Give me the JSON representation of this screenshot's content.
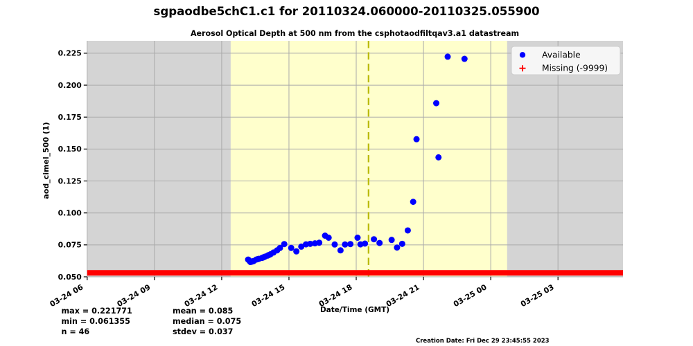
{
  "title": "sgpaodbe5chC1.c1 for 20110324.060000-20110325.055900",
  "subtitle": "Aerosol Optical Depth at 500 nm from the csphotaodfiltqav3.a1 datastream",
  "chart_data": {
    "type": "scatter",
    "title": "Aerosol Optical Depth at 500 nm from the csphotaodfiltqav3.a1 datastream",
    "xlabel": "Date/Time (GMT)",
    "ylabel": "aod_cimel_500 (1)",
    "x_start": "2011-03-24 06:00 GMT",
    "xlim_hours": [
      0,
      23.9
    ],
    "ylim": [
      0.05,
      0.2347
    ],
    "grid": true,
    "legend_position": "upper right",
    "x_ticks": [
      {
        "hour": 0,
        "label": "03-24 06"
      },
      {
        "hour": 3,
        "label": "03-24 09"
      },
      {
        "hour": 6,
        "label": "03-24 12"
      },
      {
        "hour": 9,
        "label": "03-24 15"
      },
      {
        "hour": 12,
        "label": "03-24 18"
      },
      {
        "hour": 15,
        "label": "03-24 21"
      },
      {
        "hour": 18,
        "label": "03-25 00"
      },
      {
        "hour": 21,
        "label": "03-25 03"
      }
    ],
    "y_ticks": [
      0.05,
      0.075,
      0.1,
      0.125,
      0.15,
      0.175,
      0.2,
      0.225
    ],
    "background_bands": {
      "night_color": "#d4d4d4",
      "day_color": "#ffffcc",
      "daylight_hours": [
        6.4,
        18.73
      ]
    },
    "solar_noon_hour": 12.55,
    "solar_noon_color": "#b9b900",
    "series": [
      {
        "name": "Available",
        "color": "#0000ff",
        "marker": "circle",
        "points_hours_value": [
          [
            7.18,
            0.0635
          ],
          [
            7.23,
            0.0627
          ],
          [
            7.28,
            0.0616
          ],
          [
            7.35,
            0.0619
          ],
          [
            7.42,
            0.0623
          ],
          [
            7.54,
            0.0635
          ],
          [
            7.6,
            0.0638
          ],
          [
            7.66,
            0.0641
          ],
          [
            7.8,
            0.0648
          ],
          [
            7.86,
            0.0652
          ],
          [
            7.92,
            0.0657
          ],
          [
            8.05,
            0.0666
          ],
          [
            8.11,
            0.0671
          ],
          [
            8.18,
            0.0677
          ],
          [
            8.31,
            0.069
          ],
          [
            8.47,
            0.0707
          ],
          [
            8.6,
            0.0726
          ],
          [
            8.79,
            0.0756
          ],
          [
            9.1,
            0.0726
          ],
          [
            9.33,
            0.0699
          ],
          [
            9.55,
            0.0736
          ],
          [
            9.76,
            0.0754
          ],
          [
            9.95,
            0.0758
          ],
          [
            10.16,
            0.0762
          ],
          [
            10.35,
            0.0767
          ],
          [
            10.61,
            0.0822
          ],
          [
            10.77,
            0.0806
          ],
          [
            11.04,
            0.0753
          ],
          [
            11.3,
            0.0707
          ],
          [
            11.5,
            0.0753
          ],
          [
            11.74,
            0.0756
          ],
          [
            12.06,
            0.0806
          ],
          [
            12.19,
            0.0754
          ],
          [
            12.39,
            0.076
          ],
          [
            12.79,
            0.0794
          ],
          [
            13.04,
            0.0765
          ],
          [
            13.58,
            0.0789
          ],
          [
            13.82,
            0.0729
          ],
          [
            14.05,
            0.0758
          ],
          [
            14.3,
            0.0863
          ],
          [
            14.54,
            0.1087
          ],
          [
            14.69,
            0.1577
          ],
          [
            15.57,
            0.1859
          ],
          [
            15.67,
            0.1435
          ],
          [
            16.08,
            0.2223
          ],
          [
            16.83,
            0.2206
          ]
        ]
      },
      {
        "name": "Missing (-9999)",
        "color": "#ff0000",
        "marker": "plus",
        "line_value": 0.0531,
        "hours_range": [
          0,
          23.9
        ]
      }
    ]
  },
  "legend": {
    "available_label": "Available",
    "missing_label": "Missing (-9999)"
  },
  "stats": {
    "left_lines": [
      "max = 0.221771",
      "min = 0.061355",
      "n = 46"
    ],
    "right_lines": [
      "mean = 0.085",
      "median = 0.075",
      "stdev = 0.037"
    ]
  },
  "footer": {
    "creation_date": "Creation Date: Fri Dec 29 23:45:55 2023"
  }
}
